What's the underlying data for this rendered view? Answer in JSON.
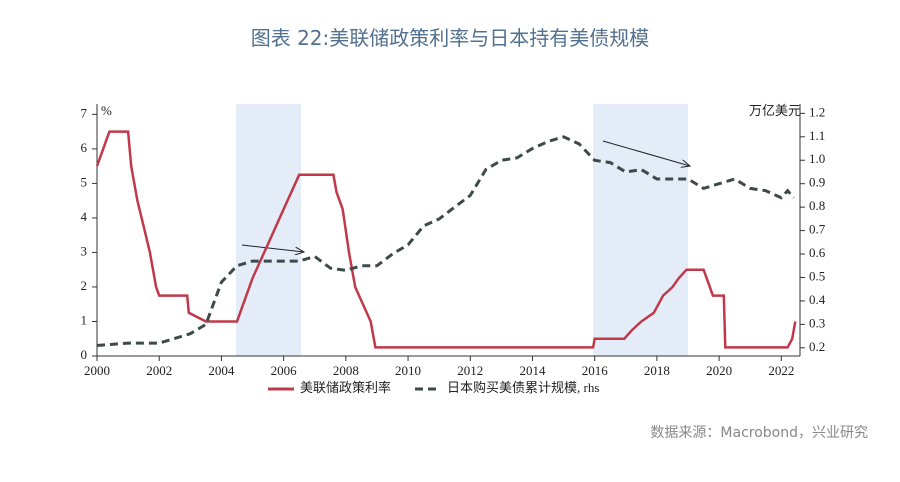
{
  "chart_data": {
    "type": "line",
    "title": "图表 22:美联储政策利率与日本持有美债规模",
    "y_unit": "%",
    "y2_unit": "万亿美元",
    "source": "数据来源：Macrobond，兴业研究",
    "xlim": [
      2000,
      2022.6
    ],
    "xticks": [
      2000,
      2002,
      2004,
      2006,
      2008,
      2010,
      2012,
      2014,
      2016,
      2018,
      2020,
      2022
    ],
    "ylim": [
      0,
      7.3
    ],
    "yticks": [
      0,
      1,
      2,
      3,
      4,
      5,
      6,
      7
    ],
    "y2lim": [
      0.165,
      1.24
    ],
    "y2ticks": [
      0.2,
      0.3,
      0.4,
      0.5,
      0.6,
      0.7,
      0.8,
      0.9,
      {
        "value": 1,
        "label": "1.0"
      },
      1.1,
      1.2
    ],
    "series": [
      {
        "name": "美联储政策利率",
        "color": "#c0394b",
        "dash": false,
        "x": [
          2000,
          2000.2,
          2000.4,
          2001.0,
          2001.1,
          2001.3,
          2001.5,
          2001.7,
          2001.9,
          2002.0,
          2002.9,
          2002.95,
          2003.5,
          2004.5,
          2004.6,
          2005.0,
          2005.5,
          2006.0,
          2006.5,
          2007.6,
          2007.7,
          2007.9,
          2008.1,
          2008.3,
          2008.8,
          2008.95,
          2015.95,
          2016.0,
          2016.95,
          2017.2,
          2017.5,
          2017.9,
          2018.2,
          2018.5,
          2018.7,
          2018.95,
          2019.5,
          2019.6,
          2019.8,
          2020.15,
          2020.2,
          2022.2,
          2022.35,
          2022.45
        ],
        "values": [
          5.5,
          6.0,
          6.5,
          6.5,
          5.5,
          4.5,
          3.75,
          3.0,
          2.0,
          1.75,
          1.75,
          1.25,
          1.0,
          1.0,
          1.25,
          2.25,
          3.25,
          4.25,
          5.25,
          5.25,
          4.75,
          4.25,
          3.0,
          2.0,
          1.0,
          0.25,
          0.25,
          0.5,
          0.5,
          0.75,
          1.0,
          1.25,
          1.75,
          2.0,
          2.25,
          2.5,
          2.5,
          2.25,
          1.75,
          1.75,
          0.25,
          0.25,
          0.5,
          1.0
        ]
      },
      {
        "name": "日本购买美债累计规模, rhs",
        "color": "#3c4a48",
        "dash": true,
        "axis": "y2",
        "x": [
          2000,
          2001,
          2002,
          2002.5,
          2003,
          2003.5,
          2004,
          2004.5,
          2005,
          2006,
          2006.5,
          2007,
          2007.5,
          2008,
          2008.5,
          2009,
          2009.5,
          2010,
          2010.5,
          2011,
          2011.5,
          2012,
          2012.5,
          2013,
          2013.5,
          2014,
          2014.5,
          2015,
          2015.5,
          2016,
          2016.5,
          2017,
          2017.5,
          2018,
          2018.5,
          2019,
          2019.5,
          2020,
          2020.5,
          2021,
          2021.5,
          2022,
          2022.2,
          2022.4
        ],
        "values": [
          0.21,
          0.22,
          0.22,
          0.24,
          0.26,
          0.3,
          0.48,
          0.55,
          0.57,
          0.57,
          0.57,
          0.59,
          0.54,
          0.53,
          0.55,
          0.55,
          0.6,
          0.64,
          0.72,
          0.75,
          0.8,
          0.85,
          0.96,
          1.0,
          1.01,
          1.05,
          1.08,
          1.1,
          1.07,
          1.0,
          0.99,
          0.95,
          0.96,
          0.92,
          0.92,
          0.92,
          0.88,
          0.9,
          0.92,
          0.88,
          0.87,
          0.84,
          0.87,
          0.84
        ]
      }
    ]
  }
}
